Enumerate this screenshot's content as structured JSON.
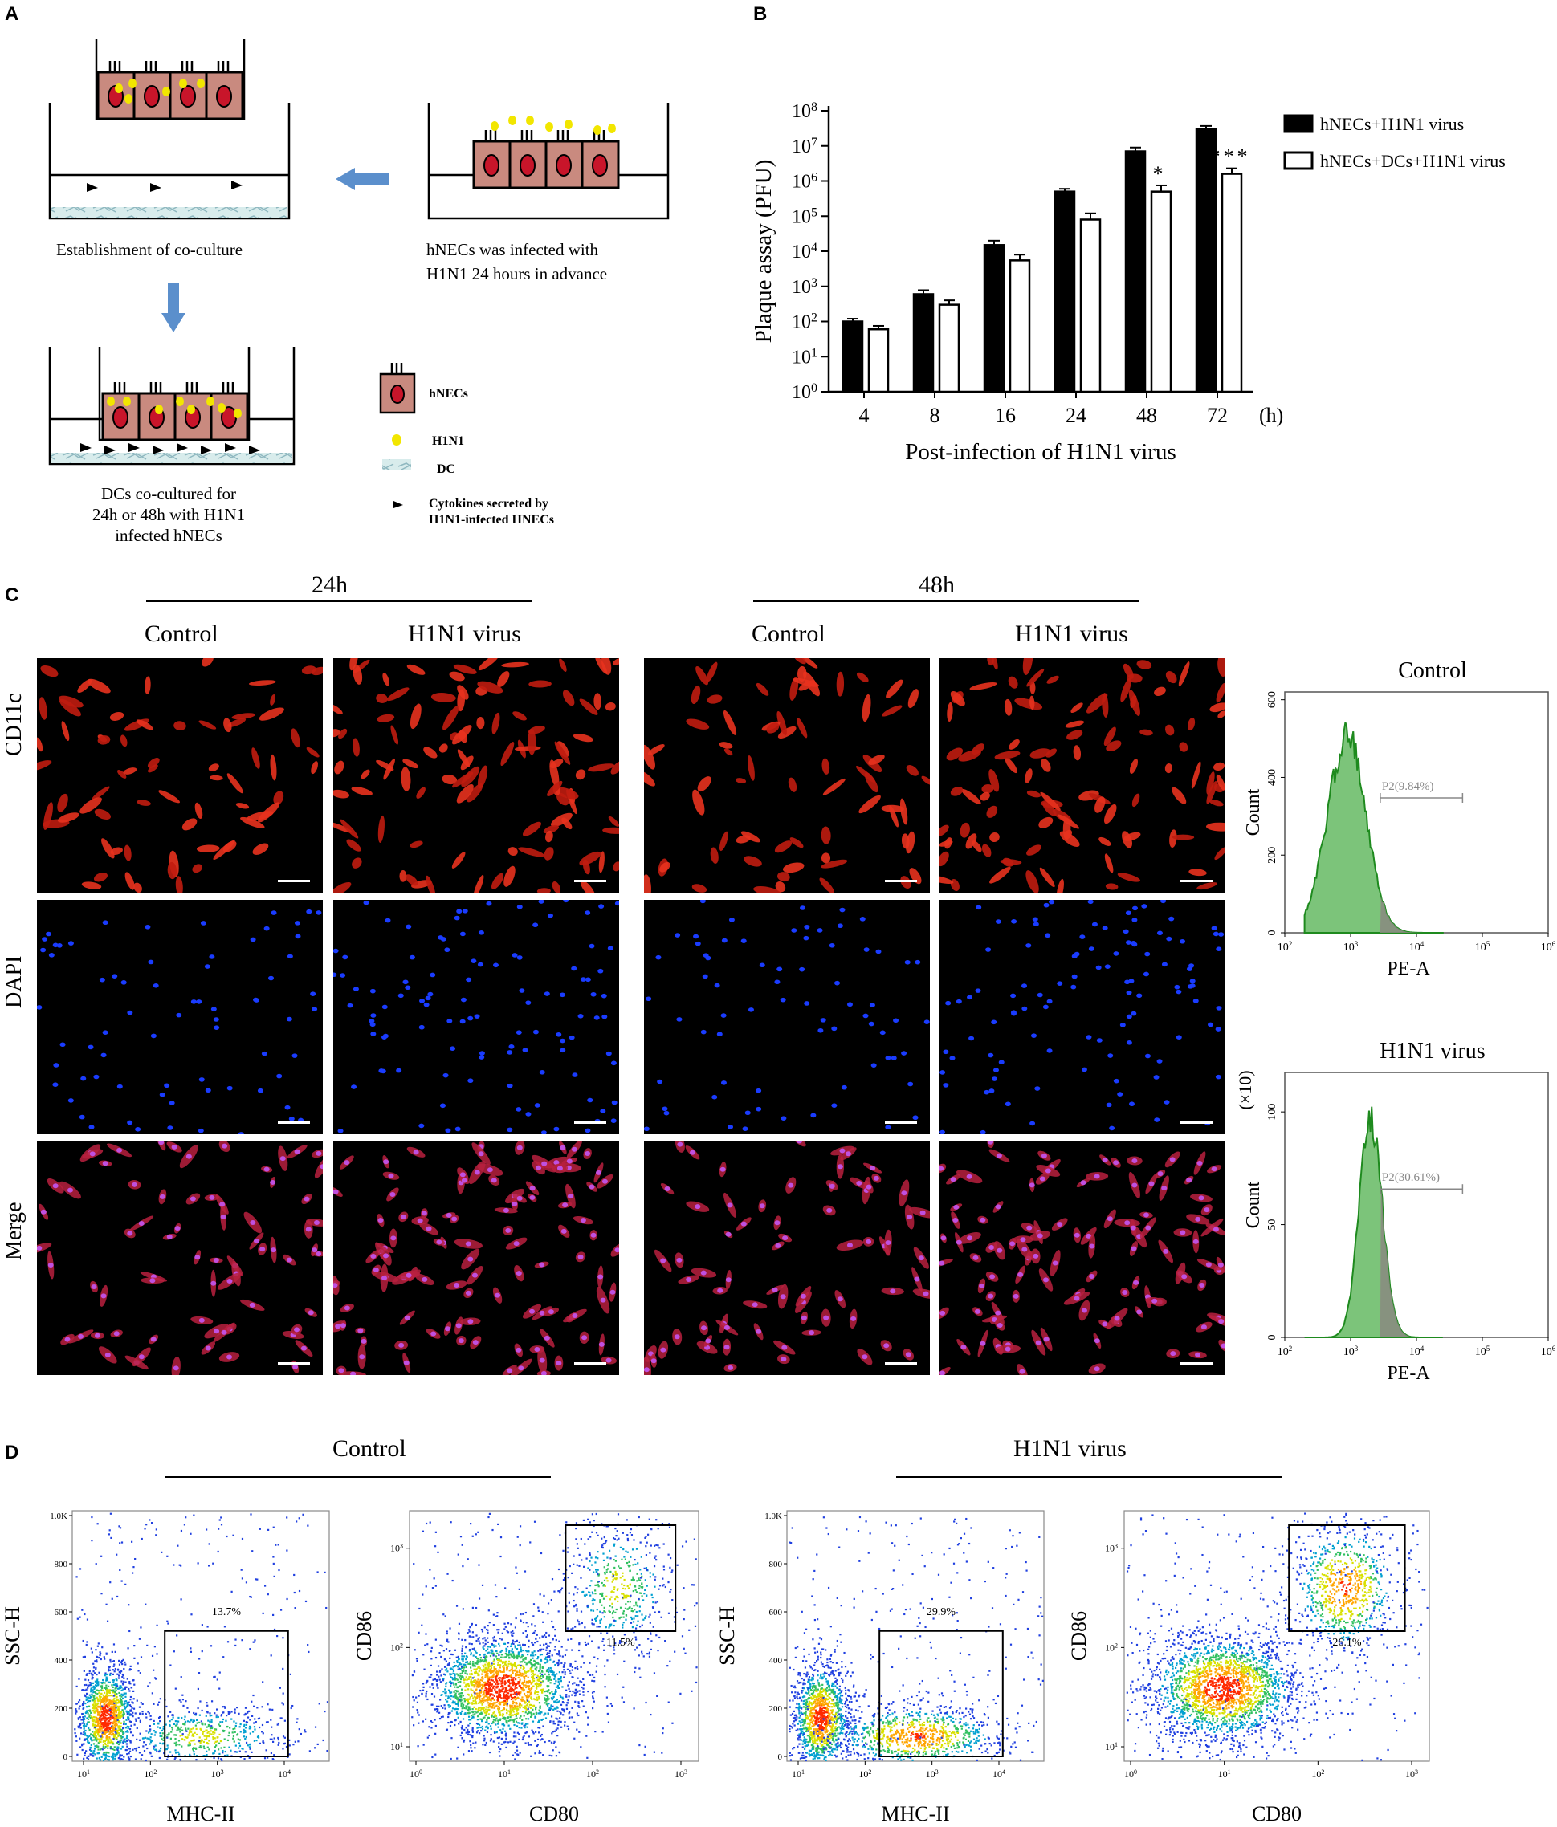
{
  "panels": {
    "a": "A",
    "b": "B",
    "c": "C",
    "d": "D"
  },
  "schematic": {
    "coculture_caption": "Establishment of  co-culture",
    "infection_caption": [
      "hNECs was infected with",
      "H1N1 24 hours in advance"
    ],
    "final_caption": [
      "DCs co-cultured for",
      "24h or 48h with H1N1",
      " infected hNECs"
    ],
    "legend": {
      "hnecs": "hNECs",
      "h1n1": "H1N1",
      "dc": "DC",
      "cytokines": [
        "Cytokines secreted by",
        "H1N1-infected HNECs"
      ]
    },
    "colors": {
      "cell": "#c98a7f",
      "nucleus": "#c8152a",
      "virus": "#f2e600",
      "arrow": "#5b8fcc"
    }
  },
  "chart_data": {
    "type": "bar",
    "ylabel": "Plaque assay (PFU)",
    "xlabel": "Post-infection of H1N1 virus",
    "xunit": "(h)",
    "yscale": "log",
    "ylim": [
      1,
      100000000
    ],
    "yticks": [
      {
        "base": "10",
        "exp": "0"
      },
      {
        "base": "10",
        "exp": "1"
      },
      {
        "base": "10",
        "exp": "2"
      },
      {
        "base": "10",
        "exp": "3"
      },
      {
        "base": "10",
        "exp": "4"
      },
      {
        "base": "10",
        "exp": "5"
      },
      {
        "base": "10",
        "exp": "6"
      },
      {
        "base": "10",
        "exp": "7"
      },
      {
        "base": "10",
        "exp": "8"
      }
    ],
    "categories": [
      "4",
      "8",
      "16",
      "24",
      "48",
      "72"
    ],
    "series": [
      {
        "name": "hNECs+H1N1 virus",
        "fill": "#000000",
        "values": [
          100,
          600,
          15000,
          500000,
          7000000,
          30000000
        ],
        "errors": [
          120,
          780,
          20000,
          600000,
          9000000,
          37000000
        ]
      },
      {
        "name": "hNECs+DCs+H1N1 virus",
        "fill": "#ffffff",
        "values": [
          60,
          300,
          5500,
          80000,
          500000,
          1600000
        ],
        "errors": [
          75,
          400,
          8000,
          120000,
          750000,
          2300000
        ]
      }
    ],
    "significance": [
      {
        "category": "48",
        "mark": "*"
      },
      {
        "category": "72",
        "mark": "***"
      }
    ],
    "legend_position": "right"
  },
  "microscopy": {
    "time_24": "24h",
    "time_48": "48h",
    "col_control": "Control",
    "col_virus": "H1N1 virus",
    "rows": [
      "CD11c",
      "DAPI",
      "Merge"
    ]
  },
  "histograms": [
    {
      "title": "Control",
      "ylabel": "Count",
      "xlabel": "PE-A",
      "yticks": [
        "0",
        "200",
        "400",
        "600"
      ],
      "xticks": [
        {
          "base": "10",
          "exp": "2"
        },
        {
          "base": "10",
          "exp": "3"
        },
        {
          "base": "10",
          "exp": "4"
        },
        {
          "base": "10",
          "exp": "5"
        },
        {
          "base": "10",
          "exp": "6"
        }
      ],
      "gate": "P2(9.84%)"
    },
    {
      "title": "H1N1 virus",
      "ylabel": "Count",
      "multiplier": "(×10)",
      "xlabel": "PE-A",
      "yticks": [
        "0",
        "50",
        "100"
      ],
      "xticks": [
        {
          "base": "10",
          "exp": "2"
        },
        {
          "base": "10",
          "exp": "3"
        },
        {
          "base": "10",
          "exp": "4"
        },
        {
          "base": "10",
          "exp": "5"
        },
        {
          "base": "10",
          "exp": "6"
        }
      ],
      "gate": "P2(30.61%)"
    }
  ],
  "flow": {
    "group_control": "Control",
    "group_virus": "H1N1 virus",
    "plots": [
      {
        "ylabel": "SSC-H",
        "xlabel": "MHC-II",
        "gate": "13.7%",
        "yticks": [
          "0",
          "200",
          "400",
          "600",
          "800",
          "1.0K"
        ]
      },
      {
        "ylabel": "CD86",
        "xlabel": "CD80",
        "gate": "11.5%"
      },
      {
        "ylabel": "SSC-H",
        "xlabel": "MHC-II",
        "gate": "29.9%",
        "yticks": [
          "0",
          "200",
          "400",
          "600",
          "800",
          "1.0K"
        ]
      },
      {
        "ylabel": "CD86",
        "xlabel": "CD80",
        "gate": "26.1%"
      }
    ],
    "logticks": [
      {
        "base": "10",
        "exp": "1"
      },
      {
        "base": "10",
        "exp": "2"
      },
      {
        "base": "10",
        "exp": "3"
      },
      {
        "base": "10",
        "exp": "4"
      }
    ],
    "logticks0": [
      {
        "base": "10",
        "exp": "0"
      },
      {
        "base": "10",
        "exp": "1"
      },
      {
        "base": "10",
        "exp": "2"
      },
      {
        "base": "10",
        "exp": "3"
      }
    ],
    "logyticks": [
      {
        "base": "10",
        "exp": "1"
      },
      {
        "base": "10",
        "exp": "2"
      },
      {
        "base": "10",
        "exp": "3"
      }
    ]
  }
}
